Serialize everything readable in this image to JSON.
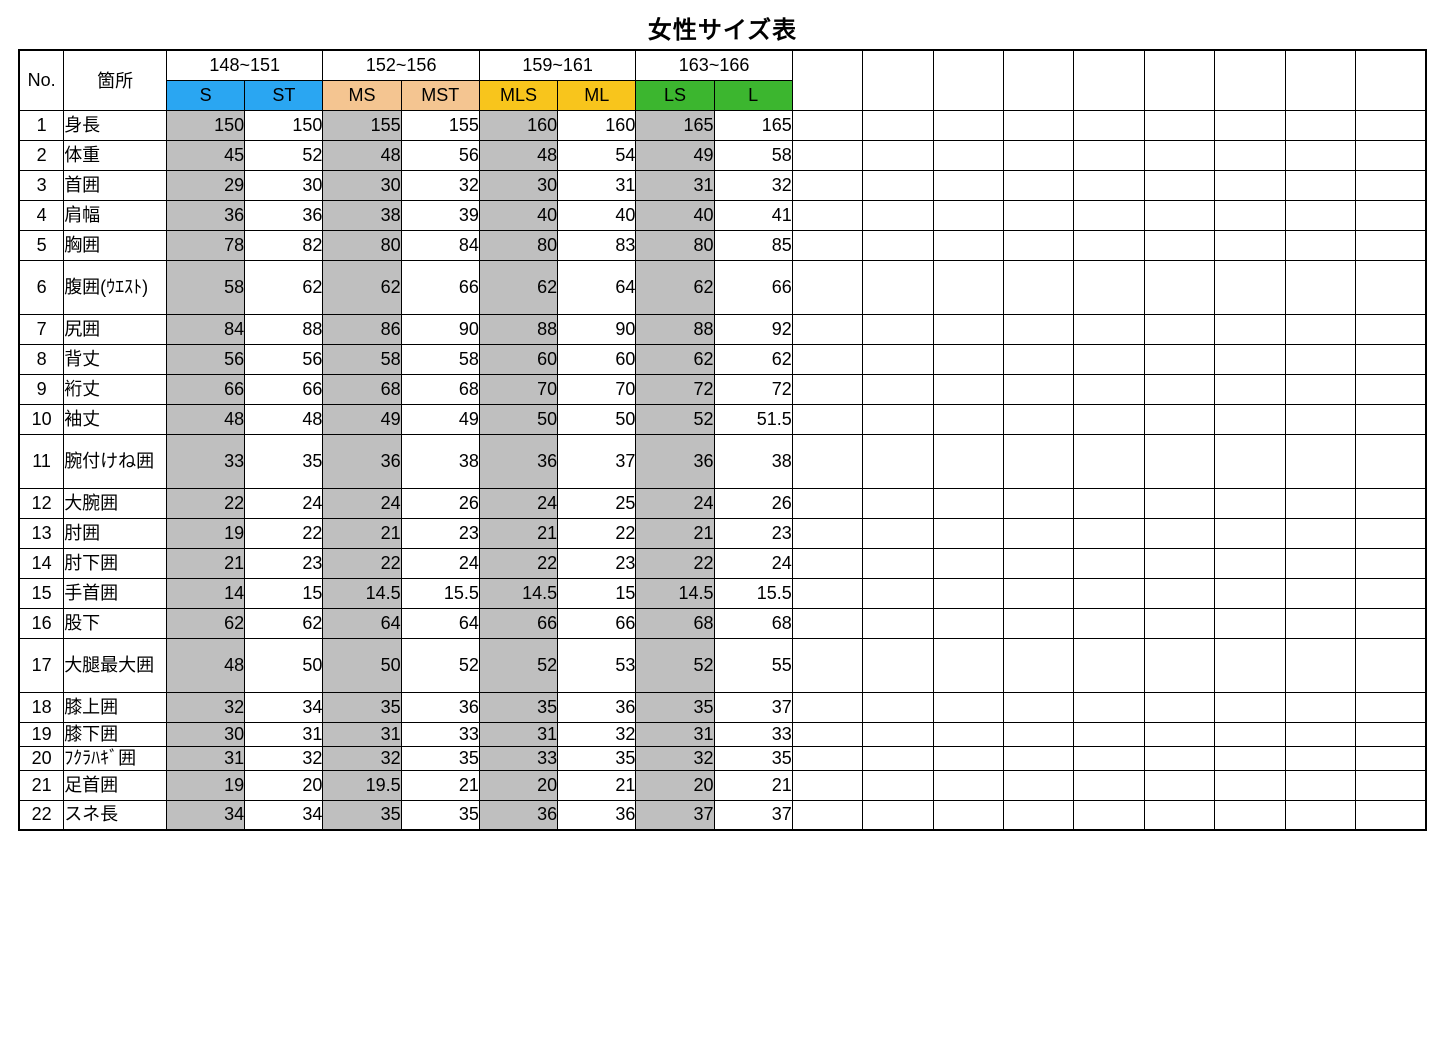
{
  "title": "女性サイズ表",
  "table": {
    "type": "table",
    "colors": {
      "border": "#000000",
      "background": "#ffffff",
      "shaded_cell": "#bfbfbf",
      "text": "#000000"
    },
    "fonts": {
      "title_size_pt": 18,
      "cell_size_pt": 13
    },
    "columns": {
      "no_label": "No.",
      "part_label": "箇所",
      "groups": [
        {
          "range": "148~151",
          "sizes": [
            "S",
            "ST"
          ],
          "bg": "#2aa6f2"
        },
        {
          "range": "152~156",
          "sizes": [
            "MS",
            "MST"
          ],
          "bg": "#f4c591"
        },
        {
          "range": "159~161",
          "sizes": [
            "MLS",
            "ML"
          ],
          "bg": "#f8c51c"
        },
        {
          "range": "163~166",
          "sizes": [
            "LS",
            "L"
          ],
          "bg": "#3cb62f"
        }
      ],
      "empty_trailing_cols": 9
    },
    "shaded_value_cols": [
      0,
      2,
      4,
      6
    ],
    "rows": [
      {
        "no": 1,
        "part": "身長",
        "values": [
          150,
          150,
          155,
          155,
          160,
          160,
          165,
          165
        ]
      },
      {
        "no": 2,
        "part": "体重",
        "values": [
          45,
          52,
          48,
          56,
          48,
          54,
          49,
          58
        ]
      },
      {
        "no": 3,
        "part": "首囲",
        "values": [
          29,
          30,
          30,
          32,
          30,
          31,
          31,
          32
        ]
      },
      {
        "no": 4,
        "part": "肩幅",
        "values": [
          36,
          36,
          38,
          39,
          40,
          40,
          40,
          41
        ]
      },
      {
        "no": 5,
        "part": "胸囲",
        "values": [
          78,
          82,
          80,
          84,
          80,
          83,
          80,
          85
        ]
      },
      {
        "no": 6,
        "part": "腹囲(ｳｴｽﾄ)",
        "values": [
          58,
          62,
          62,
          66,
          62,
          64,
          62,
          66
        ],
        "tall": true
      },
      {
        "no": 7,
        "part": "尻囲",
        "values": [
          84,
          88,
          86,
          90,
          88,
          90,
          88,
          92
        ]
      },
      {
        "no": 8,
        "part": "背丈",
        "values": [
          56,
          56,
          58,
          58,
          60,
          60,
          62,
          62
        ]
      },
      {
        "no": 9,
        "part": "裄丈",
        "values": [
          66,
          66,
          68,
          68,
          70,
          70,
          72,
          72
        ]
      },
      {
        "no": 10,
        "part": "袖丈",
        "values": [
          48,
          48,
          49,
          49,
          50,
          50,
          52,
          51.5
        ]
      },
      {
        "no": 11,
        "part": "腕付けね囲",
        "values": [
          33,
          35,
          36,
          38,
          36,
          37,
          36,
          38
        ],
        "tall": true
      },
      {
        "no": 12,
        "part": "大腕囲",
        "values": [
          22,
          24,
          24,
          26,
          24,
          25,
          24,
          26
        ]
      },
      {
        "no": 13,
        "part": "肘囲",
        "values": [
          19,
          22,
          21,
          23,
          21,
          22,
          21,
          23
        ]
      },
      {
        "no": 14,
        "part": "肘下囲",
        "values": [
          21,
          23,
          22,
          24,
          22,
          23,
          22,
          24
        ]
      },
      {
        "no": 15,
        "part": "手首囲",
        "values": [
          14,
          15,
          14.5,
          15.5,
          14.5,
          15,
          14.5,
          15.5
        ]
      },
      {
        "no": 16,
        "part": "股下",
        "values": [
          62,
          62,
          64,
          64,
          66,
          66,
          68,
          68
        ]
      },
      {
        "no": 17,
        "part": "大腿最大囲",
        "values": [
          48,
          50,
          50,
          52,
          52,
          53,
          52,
          55
        ],
        "tall": true
      },
      {
        "no": 18,
        "part": "膝上囲",
        "values": [
          32,
          34,
          35,
          36,
          35,
          36,
          35,
          37
        ]
      },
      {
        "no": 19,
        "part": "膝下囲",
        "values": [
          30,
          31,
          31,
          33,
          31,
          32,
          31,
          33
        ],
        "short": true
      },
      {
        "no": 20,
        "part": "ﾌｸﾗﾊｷﾞ囲",
        "values": [
          31,
          32,
          32,
          35,
          33,
          35,
          32,
          35
        ],
        "short": true
      },
      {
        "no": 21,
        "part": "足首囲",
        "values": [
          19,
          20,
          19.5,
          21,
          20,
          21,
          20,
          21
        ]
      },
      {
        "no": 22,
        "part": "スネ長",
        "values": [
          34,
          34,
          35,
          35,
          36,
          36,
          37,
          37
        ]
      }
    ]
  }
}
